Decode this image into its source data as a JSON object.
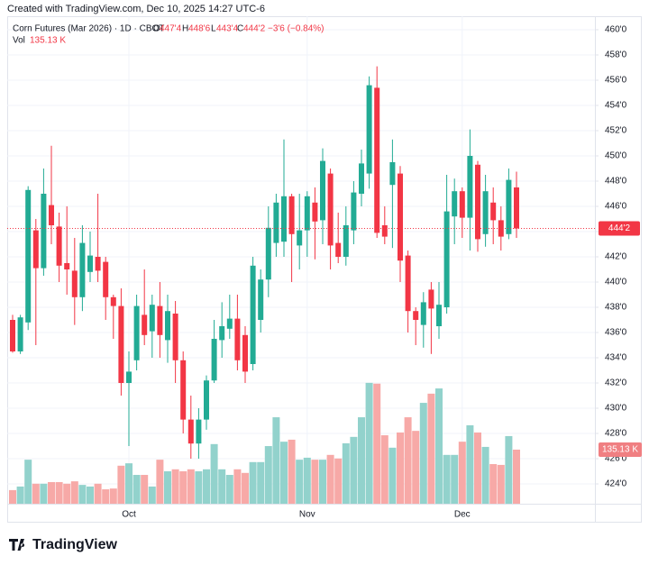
{
  "header": {
    "created": "Created with TradingView.com, Dec 10, 2025 14:27 UTC-6",
    "symbol": "Corn Futures (Mar 2026) · 1D · CBOT",
    "o_key": "O",
    "o_val": "447'4",
    "h_key": "H",
    "h_val": "448'6",
    "l_key": "L",
    "l_val": "443'4",
    "c_key": "C",
    "c_val": "444'2",
    "change": "−3'6 (−0.84%)",
    "vol_key": "Vol",
    "vol_val": "135.13 K",
    "logo": "TradingView"
  },
  "chart_data": {
    "type": "candlestick",
    "categories": [
      null,
      null,
      null,
      null,
      null,
      null,
      null,
      null,
      null,
      null,
      null,
      null,
      null,
      null,
      null,
      "Oct",
      null,
      null,
      null,
      null,
      null,
      null,
      null,
      null,
      null,
      null,
      null,
      null,
      null,
      null,
      null,
      null,
      null,
      null,
      null,
      null,
      null,
      null,
      "Nov",
      null,
      null,
      null,
      null,
      null,
      null,
      null,
      null,
      null,
      null,
      null,
      null,
      null,
      null,
      null,
      null,
      null,
      null,
      null,
      "Dec",
      null,
      null,
      null,
      null,
      null,
      null,
      null
    ],
    "open": [
      437.0,
      434.5,
      436.8,
      444.1,
      441.1,
      446.1,
      444.4,
      441.5,
      440.9,
      438.8,
      440.8,
      442.0,
      441.6,
      438.8,
      438.1,
      432.0,
      433.8,
      437.4,
      436.1,
      438.1,
      435.4,
      437.5,
      433.8,
      429.1,
      427.2,
      429.1,
      432.2,
      435.4,
      436.3,
      437.1,
      435.8,
      433.5,
      437.0,
      440.2,
      443.1,
      443.2,
      446.8,
      442.9,
      444.1,
      446.3,
      444.9,
      448.6,
      443.1,
      442.0,
      444.1,
      447.0,
      448.6,
      455.4,
      444.5,
      447.7,
      448.6,
      442.1,
      437.7,
      436.6,
      439.4,
      436.5,
      438.0,
      445.2,
      447.2,
      445.1,
      449.3,
      443.8,
      446.3,
      444.9,
      443.8,
      447.5
    ],
    "high": [
      437.4,
      437.4,
      447.6,
      445.0,
      449.0,
      450.8,
      445.5,
      446.0,
      443.5,
      444.5,
      444.0,
      447.0,
      442.0,
      439.0,
      439.5,
      434.5,
      439.0,
      441.0,
      439.0,
      440.0,
      439.0,
      438.5,
      434.5,
      431.0,
      430.0,
      432.6,
      437.0,
      438.4,
      439.0,
      439.0,
      436.5,
      442.0,
      441.0,
      446.0,
      447.0,
      451.3,
      447.0,
      447.0,
      447.2,
      447.5,
      450.6,
      449.0,
      445.5,
      446.0,
      448.0,
      450.5,
      456.3,
      457.1,
      446.0,
      451.3,
      449.2,
      442.5,
      438.0,
      439.2,
      440.0,
      440.0,
      448.5,
      448.2,
      447.5,
      452.1,
      449.6,
      448.5,
      447.5,
      446.0,
      449.0,
      448.75
    ],
    "low": [
      434.4,
      434.3,
      436.2,
      435.0,
      440.5,
      443.0,
      440.0,
      439.0,
      436.6,
      437.7,
      440.0,
      440.0,
      437.0,
      435.5,
      431.0,
      427.0,
      433.0,
      435.0,
      434.0,
      434.0,
      433.6,
      432.0,
      428.0,
      426.0,
      426.0,
      428.3,
      432.0,
      434.0,
      435.5,
      433.0,
      432.0,
      433.0,
      436.0,
      438.8,
      442.0,
      442.0,
      440.0,
      441.0,
      442.0,
      441.8,
      443.0,
      441.0,
      441.5,
      441.3,
      443.0,
      446.0,
      447.4,
      443.5,
      443.0,
      442.7,
      440.0,
      436.0,
      435.0,
      434.8,
      434.3,
      435.5,
      437.5,
      443.0,
      443.5,
      442.5,
      442.4,
      442.8,
      443.0,
      442.5,
      443.4,
      443.5
    ],
    "close": [
      434.5,
      437.2,
      447.3,
      441.1,
      447.0,
      444.5,
      441.3,
      441.0,
      438.8,
      443.1,
      442.1,
      440.9,
      438.8,
      438.1,
      432.0,
      432.9,
      438.1,
      435.8,
      438.2,
      435.8,
      437.7,
      433.8,
      429.1,
      427.2,
      429.1,
      432.2,
      435.5,
      436.5,
      437.1,
      433.8,
      432.9,
      441.3,
      440.2,
      444.3,
      446.3,
      446.8,
      443.8,
      444.1,
      446.8,
      444.8,
      449.6,
      442.9,
      442.0,
      444.5,
      447.1,
      449.4,
      455.6,
      443.9,
      443.6,
      449.5,
      441.7,
      437.7,
      437.0,
      438.4,
      437.9,
      438.2,
      445.6,
      447.2,
      445.1,
      450.0,
      443.4,
      447.2,
      444.9,
      443.6,
      448.1,
      444.25
    ],
    "volume": [
      34,
      43,
      110,
      50,
      50,
      54,
      54,
      50,
      56,
      47,
      43,
      50,
      36,
      38,
      95,
      101,
      72,
      72,
      43,
      110,
      81,
      86,
      81,
      86,
      81,
      86,
      149,
      86,
      72,
      86,
      77,
      104,
      104,
      144,
      216,
      155,
      160,
      110,
      115,
      110,
      110,
      122,
      113,
      151,
      167,
      216,
      302,
      300,
      171,
      140,
      178,
      216,
      182,
      252,
      275,
      288,
      122,
      122,
      155,
      196,
      178,
      142,
      99,
      97,
      169,
      135.13
    ],
    "volume_tag": "135.13 K",
    "last_price": {
      "value": 444.25,
      "label": "444'2"
    },
    "up_color": "#22ab94",
    "down_color": "#f23645",
    "up_volume_color": "#92d2cc",
    "down_volume_color": "#f7a9a7",
    "ylim": [
      422.43,
      461.07
    ],
    "yticks": [
      {
        "value": 424,
        "label": "424'0"
      },
      {
        "value": 426,
        "label": "426'0"
      },
      {
        "value": 428,
        "label": "428'0"
      },
      {
        "value": 430,
        "label": "430'0"
      },
      {
        "value": 432,
        "label": "432'0"
      },
      {
        "value": 434,
        "label": "434'0"
      },
      {
        "value": 436,
        "label": "436'0"
      },
      {
        "value": 438,
        "label": "438'0"
      },
      {
        "value": 440,
        "label": "440'0"
      },
      {
        "value": 442,
        "label": "442'0"
      },
      {
        "value": 444,
        "label": "444'0"
      },
      {
        "value": 446,
        "label": "446'0"
      },
      {
        "value": 448,
        "label": "448'0"
      },
      {
        "value": 450,
        "label": "450'0"
      },
      {
        "value": 452,
        "label": "452'0"
      },
      {
        "value": 454,
        "label": "454'0"
      },
      {
        "value": 456,
        "label": "456'0"
      },
      {
        "value": 458,
        "label": "458'0"
      },
      {
        "value": 460,
        "label": "460'0"
      }
    ],
    "y2lim": [
      0,
      1218
    ],
    "grid": true
  }
}
